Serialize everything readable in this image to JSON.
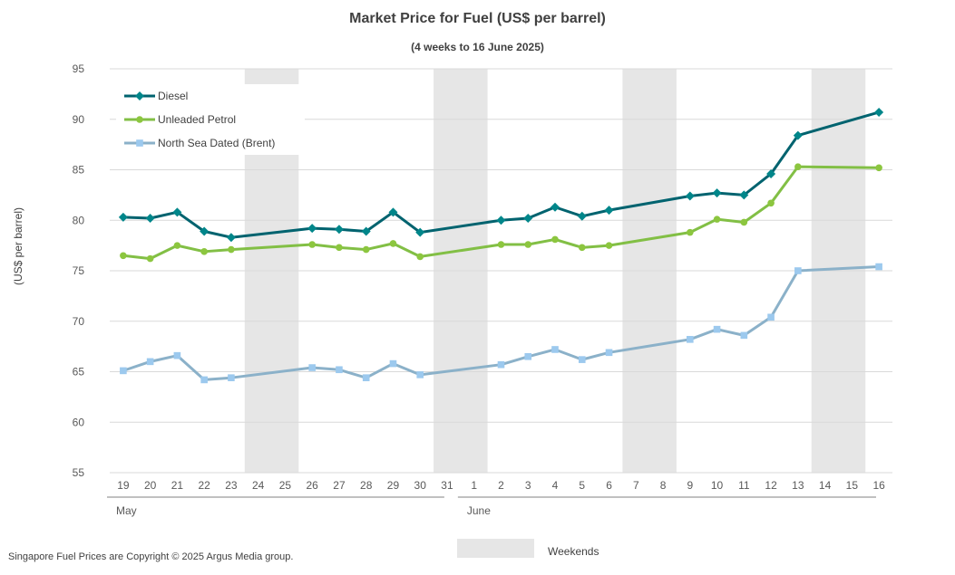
{
  "chart_data": {
    "type": "line",
    "title": "Market Price for Fuel (US$ per barrel)",
    "subtitle": "(4 weeks to 16 June 2025)",
    "ylabel": "(US$ per barrel)",
    "xlabel": "",
    "ylim": [
      55,
      95
    ],
    "yticks": [
      55,
      60,
      65,
      70,
      75,
      80,
      85,
      90,
      95
    ],
    "grid": true,
    "legend_position": "top-left",
    "categories": [
      "19",
      "20",
      "21",
      "22",
      "23",
      "24",
      "25",
      "26",
      "27",
      "28",
      "29",
      "30",
      "31",
      "1",
      "2",
      "3",
      "4",
      "5",
      "6",
      "7",
      "8",
      "9",
      "10",
      "11",
      "12",
      "13",
      "14",
      "15",
      "16"
    ],
    "month_labels": [
      {
        "label": "May",
        "start_index": 0
      },
      {
        "label": "June",
        "start_index": 13
      }
    ],
    "weekends": [
      {
        "start": "24",
        "end": "25"
      },
      {
        "start": "31",
        "end": "1"
      },
      {
        "start": "7",
        "end": "8"
      },
      {
        "start": "14",
        "end": "15"
      }
    ],
    "series": [
      {
        "name": "Diesel",
        "color": "#00636f",
        "marker_color": "#00868a",
        "marker": "diamond",
        "values": [
          80.3,
          80.2,
          80.8,
          78.9,
          78.3,
          null,
          null,
          79.2,
          79.1,
          78.9,
          80.8,
          78.8,
          null,
          null,
          80.0,
          80.2,
          81.3,
          80.4,
          81.0,
          null,
          null,
          82.4,
          82.7,
          82.5,
          84.6,
          88.4,
          null,
          null,
          90.7
        ]
      },
      {
        "name": "Unleaded Petrol",
        "color": "#82bf45",
        "marker_color": "#8cc63f",
        "marker": "circle",
        "values": [
          76.5,
          76.2,
          77.5,
          76.9,
          77.1,
          null,
          null,
          77.6,
          77.3,
          77.1,
          77.7,
          76.4,
          null,
          null,
          77.6,
          77.6,
          78.1,
          77.3,
          77.5,
          null,
          null,
          78.8,
          80.1,
          79.8,
          81.7,
          85.3,
          null,
          null,
          85.2
        ]
      },
      {
        "name": "North Sea Dated (Brent)",
        "color": "#8bb1c9",
        "marker_color": "#9cc9ee",
        "marker": "square",
        "values": [
          65.1,
          66.0,
          66.6,
          64.2,
          64.4,
          null,
          null,
          65.4,
          65.2,
          64.4,
          65.8,
          64.7,
          null,
          null,
          65.7,
          66.5,
          67.2,
          66.2,
          66.9,
          null,
          null,
          68.2,
          69.2,
          68.6,
          70.4,
          75.0,
          null,
          null,
          75.4
        ]
      }
    ]
  },
  "footer": {
    "copyright": "Singapore Fuel Prices are Copyright © 2025 Argus Media group.",
    "weekends_label": "Weekends"
  }
}
